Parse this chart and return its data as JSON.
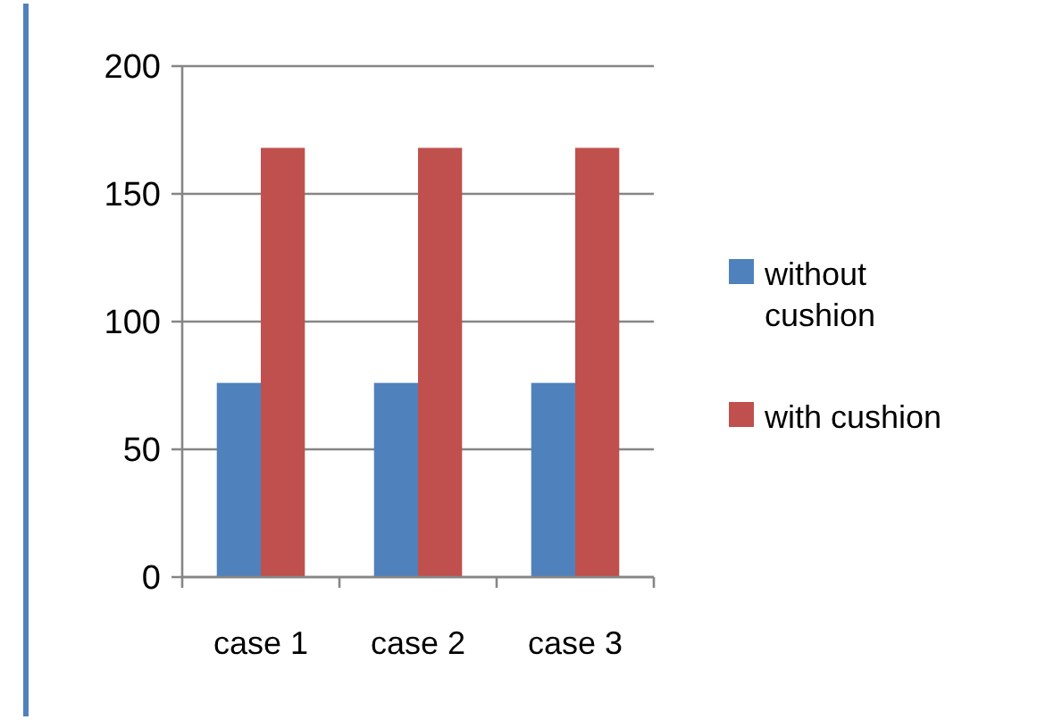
{
  "chart_data": {
    "type": "bar",
    "categories": [
      "case 1",
      "case 2",
      "case 3"
    ],
    "series": [
      {
        "name": "without cushion",
        "color": "#4f81bd",
        "values": [
          76,
          76,
          76
        ]
      },
      {
        "name": "with cushion",
        "color": "#c0504d",
        "values": [
          168,
          168,
          168
        ]
      }
    ],
    "ylim": [
      0,
      200
    ],
    "yticks": [
      0,
      50,
      100,
      150,
      200
    ],
    "grid": "y",
    "legend": "right"
  }
}
